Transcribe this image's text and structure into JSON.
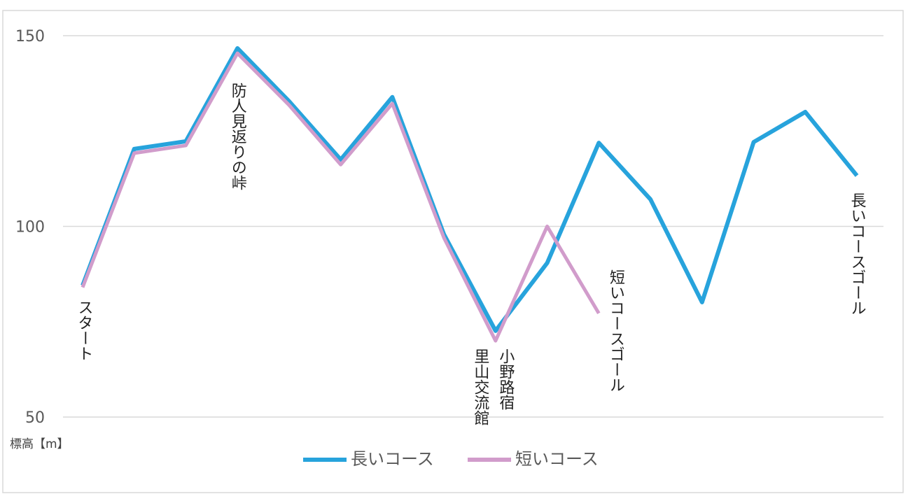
{
  "chart_data": {
    "type": "line",
    "y_label": "標高【m】",
    "categories": [
      null,
      null,
      null,
      null,
      null,
      null,
      null,
      null,
      null,
      null,
      null,
      null,
      null,
      null,
      null,
      null
    ],
    "series": [
      {
        "name": "長いコース",
        "color": "#27a3dc",
        "values": [
          84.5,
          120.3,
          122.3,
          146.7,
          132.8,
          117.5,
          133.9,
          97.9,
          72.6,
          90.4,
          121.9,
          107.1,
          80.1,
          122.1,
          130,
          113.3
        ]
      },
      {
        "name": "短いコース",
        "color": "#d19ccb",
        "values": [
          84,
          119.2,
          121.2,
          145.4,
          131.8,
          116.2,
          132.2,
          97,
          70,
          100,
          77.2,
          null,
          null,
          null,
          null,
          null
        ]
      }
    ],
    "annotations": [
      {
        "text": "スタート",
        "index": 0
      },
      {
        "text": "防人見返りの峠",
        "index": 3
      },
      {
        "text": "里山交流館",
        "index": 8
      },
      {
        "text": "小野路宿",
        "index": 8
      },
      {
        "text": "短いコースゴール",
        "index": 10
      },
      {
        "text": "長いコースゴール",
        "index": 15
      }
    ],
    "ylim": [
      50,
      150
    ],
    "yticks": [
      50,
      100,
      150
    ],
    "grid": true,
    "legend": "bottom"
  }
}
